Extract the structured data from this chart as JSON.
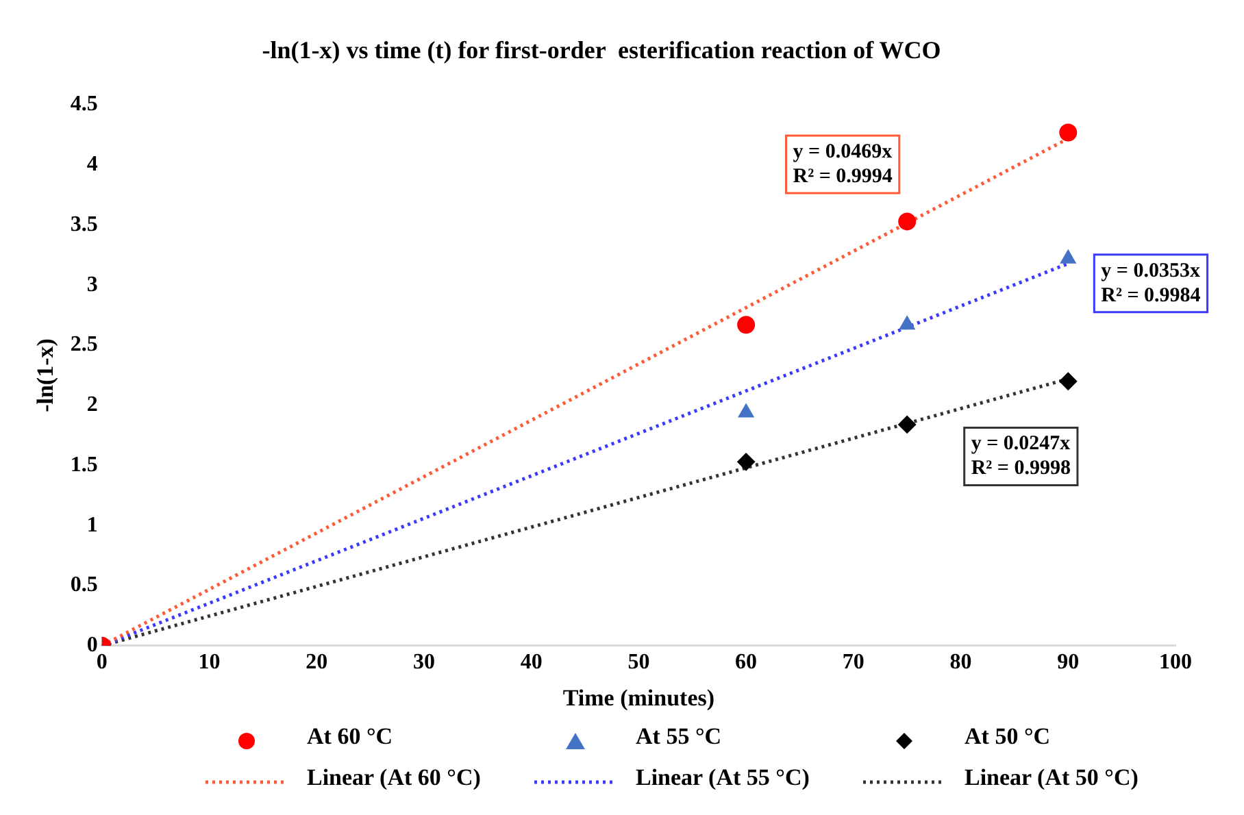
{
  "chart_data": {
    "type": "scatter",
    "title": "-ln(1-x) vs time (t) for first-order  esterification reaction of WCO",
    "xlabel": "Time (minutes)",
    "ylabel": "-ln(1-x)",
    "xlim": [
      0,
      100
    ],
    "xticks": [
      0,
      10,
      20,
      30,
      40,
      50,
      60,
      70,
      80,
      90,
      100
    ],
    "ylim": [
      0,
      4.5
    ],
    "yticks": [
      0,
      0.5,
      1,
      1.5,
      2,
      2.5,
      3,
      3.5,
      4,
      4.5
    ],
    "grid": false,
    "legend": "bottom",
    "series": [
      {
        "name": "At 60 °C",
        "marker": "circle",
        "color": "#ff0000",
        "x": [
          0,
          60,
          75,
          90
        ],
        "values": [
          0,
          2.67,
          3.53,
          4.27
        ]
      },
      {
        "name": "At 55 °C",
        "marker": "triangle",
        "color": "#4472c4",
        "x": [
          0,
          60,
          75,
          90
        ],
        "values": [
          0,
          1.94,
          2.67,
          3.22
        ]
      },
      {
        "name": "At 50 °C",
        "marker": "diamond",
        "color": "#000000",
        "x": [
          0,
          60,
          75,
          90
        ],
        "values": [
          0,
          1.53,
          1.84,
          2.2
        ]
      },
      {
        "name": "Linear (At 60 °C)",
        "type": "line",
        "marker": "none",
        "line_style": "dotted",
        "color": "#ff5a36",
        "x": [
          0,
          90
        ],
        "values": [
          0,
          4.22
        ]
      },
      {
        "name": "Linear (At 55 °C)",
        "type": "line",
        "marker": "none",
        "line_style": "dotted",
        "color": "#3a3aff",
        "x": [
          0,
          90
        ],
        "values": [
          0,
          3.18
        ]
      },
      {
        "name": "Linear (At 50 °C)",
        "type": "line",
        "marker": "none",
        "line_style": "dotted",
        "color": "#333333",
        "x": [
          0,
          90
        ],
        "values": [
          0,
          2.22
        ]
      }
    ],
    "annotations": [
      "y = 0.0469x\nR² = 0.9994",
      "y = 0.0353x\nR² = 0.9984",
      "y = 0.0247x\nR² = 0.9998"
    ]
  }
}
